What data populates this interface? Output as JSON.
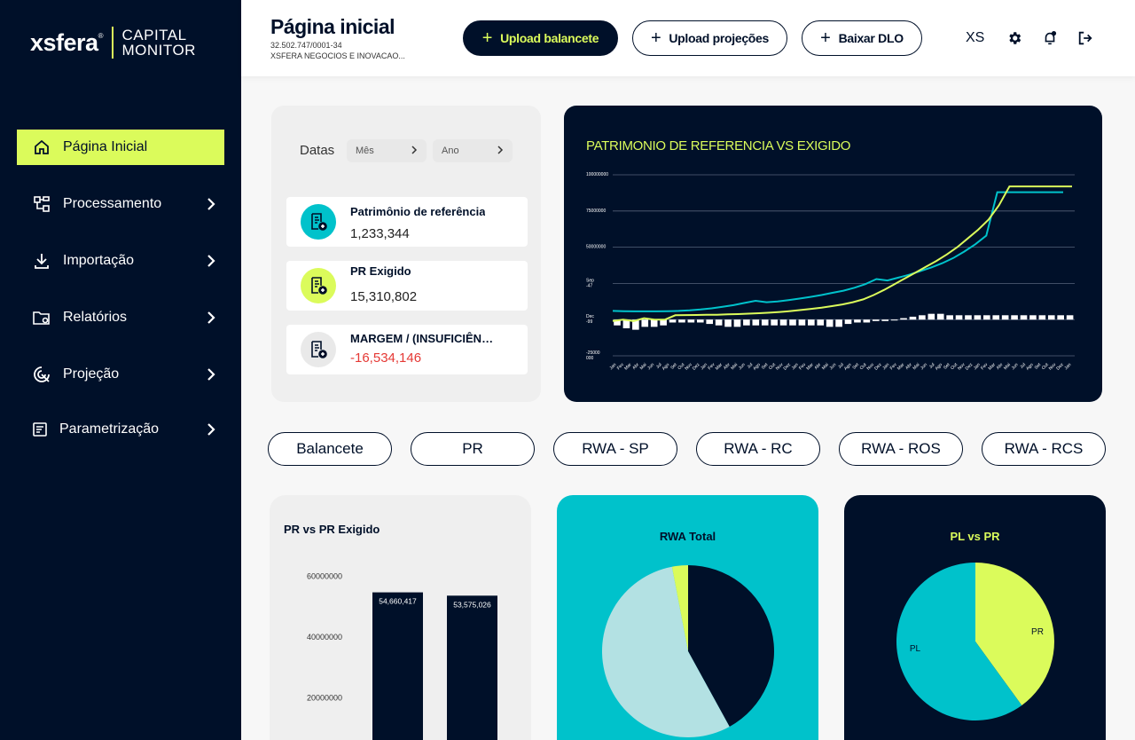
{
  "brand": {
    "name": "xsfera",
    "sub1": "CAPITAL",
    "sub2": "MONITOR"
  },
  "sidebar": {
    "items": [
      {
        "label": "Página Inicial",
        "icon": "home-icon",
        "active": true
      },
      {
        "label": "Processamento",
        "icon": "flow-icon"
      },
      {
        "label": "Importação",
        "icon": "download-icon"
      },
      {
        "label": "Relatórios",
        "icon": "folder-icon"
      },
      {
        "label": "Projeção",
        "icon": "projection-icon"
      },
      {
        "label": "Parametrização",
        "icon": "settings-list-icon"
      }
    ]
  },
  "header": {
    "title": "Página inicial",
    "cnpj": "32.502.747/0001-34",
    "company": "XSFERA NEGOCIOS E INOVACAO...",
    "buttons": {
      "upload_balancete": "Upload balancete",
      "upload_projecoes": "Upload projeções",
      "baixar_dlo": "Baixar DLO"
    },
    "user": "XS"
  },
  "filters": {
    "label": "Datas",
    "month": "Mês",
    "year": "Ano"
  },
  "kpis": [
    {
      "title": "Patrimônio de referência",
      "value": "1,233,344",
      "color": "#00c2cb"
    },
    {
      "title": "PR Exigido",
      "value": "15,310,802",
      "color": "#dbfb5b"
    },
    {
      "title": "MARGEM / (INSUFICIÊNCIA)",
      "value": "-16,534,146",
      "color": "#e5e5e5"
    }
  ],
  "colors": {
    "navy": "#001029",
    "lime": "#dbfb5b",
    "teal": "#00c2cb",
    "lightteal": "#b3e1e3",
    "negative": "#e53935"
  },
  "main_chart": {
    "title": "PATRIMONIO DE REFERENCIA VS EXIGIDO",
    "y_labels": [
      "100000000",
      "75000000",
      "50000000",
      "Sep\n-47",
      "Dec\n-99",
      "-25000\n000"
    ],
    "x_labels": [
      "Jan",
      "Fev",
      "Mar",
      "Abr",
      "Mai",
      "Jun",
      "Jul",
      "Ago",
      "Set",
      "Out",
      "Nov",
      "Dez",
      "Jan",
      "Fev",
      "Mar",
      "Abr",
      "Mai",
      "Jun",
      "Jul",
      "Ago",
      "Set",
      "Out",
      "Nov",
      "Dez",
      "Jan",
      "Fev",
      "Mar",
      "Abr",
      "Mai",
      "Jun",
      "Jul",
      "Ago",
      "Set",
      "Out",
      "Nov",
      "Dez",
      "Jan",
      "Fev",
      "Mar",
      "Abr",
      "Mai",
      "Jun",
      "Jul",
      "Ago",
      "Set",
      "Out",
      "Nov",
      "Dez",
      "Jan",
      "Fev",
      "Mar",
      "Abr",
      "Mai",
      "Jun",
      "Jul",
      "Ago",
      "Set",
      "Out",
      "Nov",
      "Dez",
      "Jan"
    ]
  },
  "tabs": [
    "Balancete",
    "PR",
    "RWA - SP",
    "RWA - RC",
    "RWA - ROS",
    "RWA - RCS"
  ],
  "chart_data": [
    {
      "type": "line",
      "title": "PATRIMONIO DE REFERENCIA VS EXIGIDO",
      "ylim": [
        -25000000,
        100000000
      ],
      "series": [
        {
          "values": [
            6000000,
            5800000,
            5700000,
            5700000,
            5700000,
            5800000,
            6000000,
            6400000,
            7000000,
            7800000,
            8800000,
            10000000,
            11500000,
            13000000,
            12000000,
            12500000,
            13500000,
            14500000,
            15700000,
            17000000,
            18500000,
            20000000,
            22000000,
            24500000,
            28000000,
            27000000,
            29000000,
            31000000,
            33500000,
            36000000,
            39000000,
            42500000,
            47000000,
            52000000,
            58000000,
            88000000,
            88000000,
            88000000,
            88000000,
            88000000,
            88000000,
            88000000
          ]
        },
        {
          "values": [
            -1000000,
            0,
            -1000000,
            1000000,
            0,
            0,
            3000000,
            3100000,
            3200000,
            3300000,
            3400000,
            3600000,
            3800000,
            4100000,
            4400000,
            4800000,
            5300000,
            5900000,
            6600000,
            7400000,
            8300000,
            9300000,
            10500000,
            12000000,
            14000000,
            17000000,
            20500000,
            24500000,
            28500000,
            32500000,
            36500000,
            40500000,
            45000000,
            50000000,
            56000000,
            62000000,
            69000000,
            79000000,
            92000000,
            92000000,
            92000000,
            92000000,
            92000000,
            92000000,
            92000000
          ]
        },
        {
          "values": [
            -4000000,
            -6000000,
            -7000000,
            -5000000,
            -5000000,
            -4000000,
            -2000000,
            -2000000,
            -2000000,
            -2000000,
            -3000000,
            -4000000,
            -5000000,
            -5000000,
            -4000000,
            -4000000,
            -4000000,
            -4000000,
            -4000000,
            -4000000,
            -4000000,
            -4000000,
            -4000000,
            -5000000,
            -5000000,
            -3000000,
            -2000000,
            -2000000,
            -1000000,
            -1000000,
            0,
            1000000,
            2000000,
            3000000,
            4000000,
            4000000,
            3000000,
            3000000,
            3000000,
            3000000,
            3000000,
            3000000,
            3000000,
            3000000,
            3000000,
            3000000,
            3000000,
            3000000,
            3000000,
            3000000
          ]
        }
      ]
    },
    {
      "type": "bar",
      "title": "PR vs PR Exigido",
      "y_ticks": [
        "60000000",
        "40000000",
        "20000000"
      ],
      "ylim": [
        0,
        70000000
      ],
      "values": [
        54660417,
        53575026
      ],
      "data_labels": [
        "54,660,417",
        "53,575,026"
      ]
    },
    {
      "type": "pie",
      "title": "RWA Total",
      "values": [
        42,
        55,
        3
      ],
      "colors": [
        "#001029",
        "#b3e1e3",
        "#dbfb5b"
      ]
    },
    {
      "type": "pie",
      "title": "PL vs PR",
      "categories": [
        "PR",
        "PL"
      ],
      "values": [
        40,
        60
      ],
      "colors": [
        "#dbfb5b",
        "#00c2cb"
      ]
    }
  ]
}
